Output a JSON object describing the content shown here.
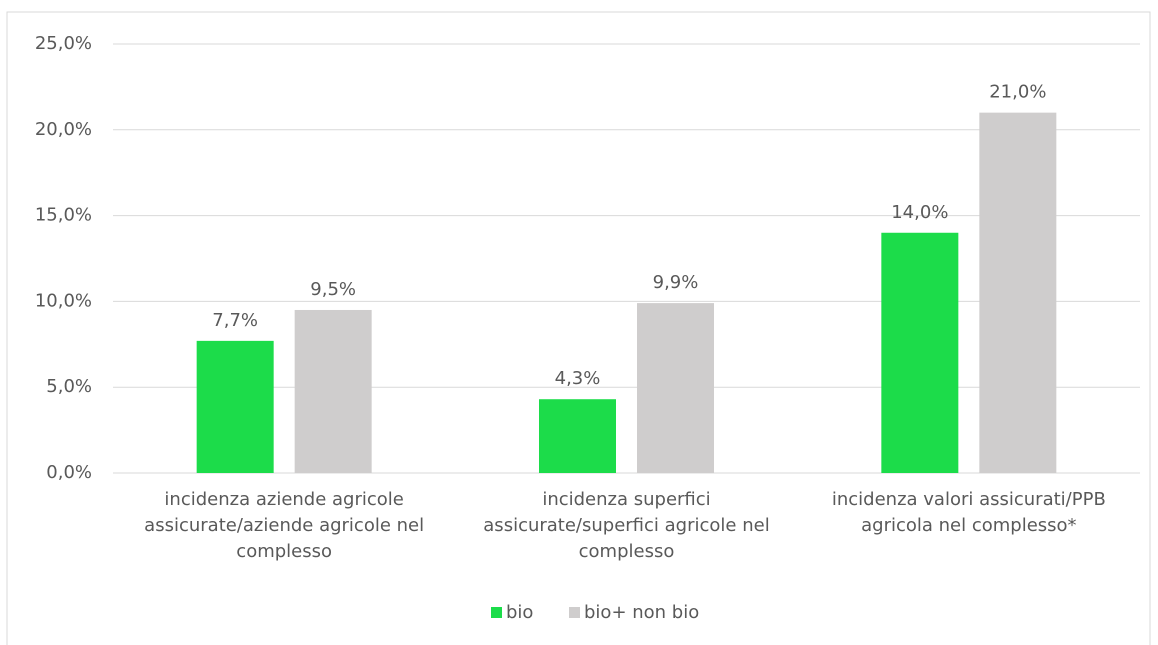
{
  "chart_data": {
    "type": "bar",
    "categories": [
      "incidenza aziende agricole assicurate/aziende agricole nel complesso",
      "incidenza superfici assicurate/superfici agricole nel complesso",
      "incidenza valori assicurati/PPB agricola nel complesso*"
    ],
    "series": [
      {
        "name": "bio",
        "color": "#1cdc4a",
        "values": [
          7.7,
          4.3,
          14.0
        ],
        "value_labels": [
          "7,7%",
          "4,3%",
          "14,0%"
        ]
      },
      {
        "name": "bio+ non bio",
        "color": "#cfcdcd",
        "values": [
          9.5,
          9.9,
          21.0
        ],
        "value_labels": [
          "9,5%",
          "9,9%",
          "21,0%"
        ]
      }
    ],
    "ylim": [
      0,
      25
    ],
    "yticks": [
      {
        "value": 0,
        "label": "0,0%"
      },
      {
        "value": 5,
        "label": "5,0%"
      },
      {
        "value": 10,
        "label": "10,0%"
      },
      {
        "value": 15,
        "label": "15,0%"
      },
      {
        "value": 20,
        "label": "20,0%"
      },
      {
        "value": 25,
        "label": "25,0%"
      }
    ],
    "grid": true,
    "legend": "bottom"
  }
}
